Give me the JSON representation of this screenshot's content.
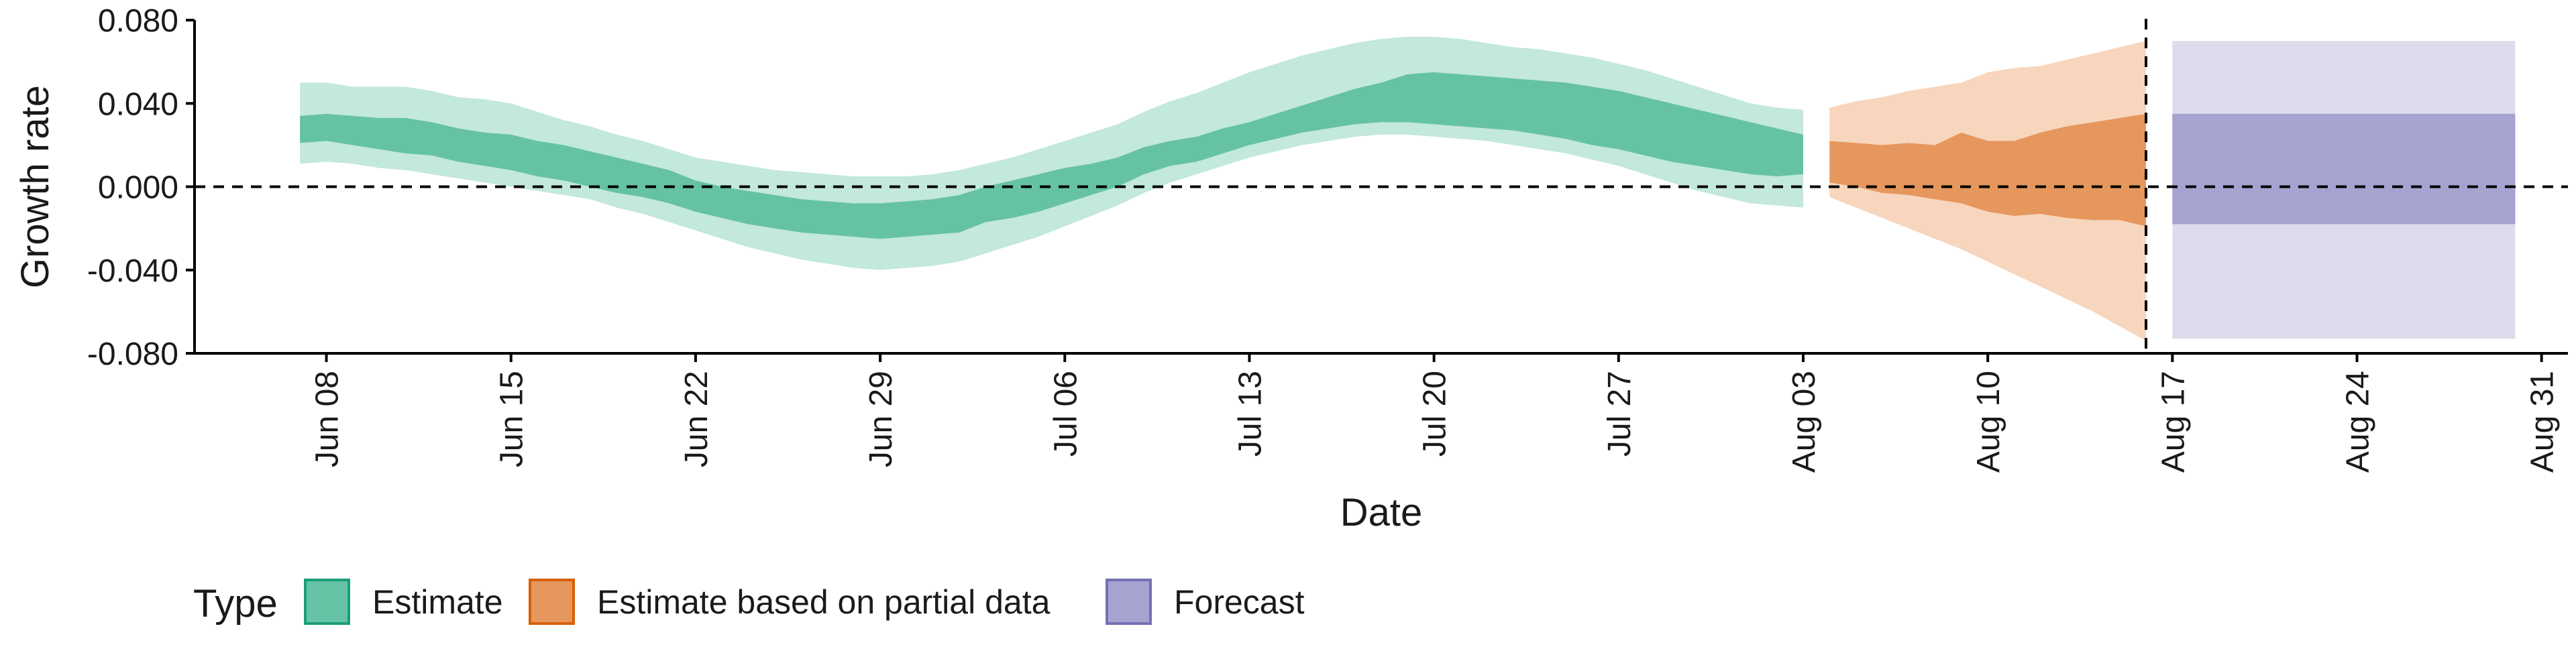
{
  "chart_data": {
    "type": "area",
    "xlabel": "Date",
    "ylabel": "Growth rate",
    "ylim": [
      -0.08,
      0.08
    ],
    "yticks": [
      "-0.080",
      "-0.040",
      "0.000",
      "0.040",
      "0.080"
    ],
    "ytick_values": [
      -0.08,
      -0.04,
      0.0,
      0.04,
      0.08
    ],
    "xlim": [
      "2020-06-03",
      "2020-09-01"
    ],
    "xticks": [
      "Jun 08",
      "Jun 15",
      "Jun 22",
      "Jun 29",
      "Jul 06",
      "Jul 13",
      "Jul 20",
      "Jul 27",
      "Aug 03",
      "Aug 10",
      "Aug 17",
      "Aug 24",
      "Aug 31"
    ],
    "xtick_dates": [
      "2020-06-08",
      "2020-06-15",
      "2020-06-22",
      "2020-06-29",
      "2020-07-06",
      "2020-07-13",
      "2020-07-20",
      "2020-07-27",
      "2020-08-03",
      "2020-08-10",
      "2020-08-17",
      "2020-08-24",
      "2020-08-31"
    ],
    "reference_lines": [
      {
        "axis": "y",
        "value": 0.0,
        "style": "dashed"
      },
      {
        "axis": "x",
        "value": "2020-08-16",
        "style": "dashed"
      }
    ],
    "grid": false,
    "legend": {
      "title": "Type",
      "position": "bottom-left",
      "entries": [
        "Estimate",
        "Estimate based on partial data",
        "Forecast"
      ]
    },
    "colors": {
      "Estimate": {
        "inner": "#66c2a5",
        "outer": "#c3e8dd",
        "border": "#1b9e77"
      },
      "Estimate based on partial data": {
        "inner": "#e6975e",
        "outer": "#f7d6bd",
        "border": "#d95f02"
      },
      "Forecast": {
        "inner": "#a7a3d1",
        "outer": "#dddbec",
        "border": "#7570b3"
      }
    },
    "series": [
      {
        "name": "Estimate",
        "x": [
          "2020-06-07",
          "2020-06-08",
          "2020-06-09",
          "2020-06-10",
          "2020-06-11",
          "2020-06-12",
          "2020-06-13",
          "2020-06-14",
          "2020-06-15",
          "2020-06-16",
          "2020-06-17",
          "2020-06-18",
          "2020-06-19",
          "2020-06-20",
          "2020-06-21",
          "2020-06-22",
          "2020-06-23",
          "2020-06-24",
          "2020-06-25",
          "2020-06-26",
          "2020-06-27",
          "2020-06-28",
          "2020-06-29",
          "2020-06-30",
          "2020-07-01",
          "2020-07-02",
          "2020-07-03",
          "2020-07-04",
          "2020-07-05",
          "2020-07-06",
          "2020-07-07",
          "2020-07-08",
          "2020-07-09",
          "2020-07-10",
          "2020-07-11",
          "2020-07-12",
          "2020-07-13",
          "2020-07-14",
          "2020-07-15",
          "2020-07-16",
          "2020-07-17",
          "2020-07-18",
          "2020-07-19",
          "2020-07-20",
          "2020-07-21",
          "2020-07-22",
          "2020-07-23",
          "2020-07-24",
          "2020-07-25",
          "2020-07-26",
          "2020-07-27",
          "2020-07-28",
          "2020-07-29",
          "2020-07-30",
          "2020-07-31",
          "2020-08-01",
          "2020-08-02",
          "2020-08-03"
        ],
        "lower_90": [
          0.011,
          0.012,
          0.011,
          0.009,
          0.008,
          0.006,
          0.004,
          0.002,
          0.0,
          -0.002,
          -0.004,
          -0.006,
          -0.01,
          -0.013,
          -0.017,
          -0.021,
          -0.025,
          -0.029,
          -0.032,
          -0.035,
          -0.037,
          -0.039,
          -0.04,
          -0.039,
          -0.038,
          -0.036,
          -0.032,
          -0.028,
          -0.024,
          -0.019,
          -0.014,
          -0.009,
          -0.003,
          0.002,
          0.006,
          0.01,
          0.014,
          0.017,
          0.02,
          0.022,
          0.024,
          0.025,
          0.025,
          0.024,
          0.023,
          0.022,
          0.02,
          0.018,
          0.016,
          0.013,
          0.01,
          0.006,
          0.002,
          -0.002,
          -0.005,
          -0.008,
          -0.009,
          -0.01
        ],
        "lower_50": [
          0.021,
          0.022,
          0.02,
          0.018,
          0.016,
          0.015,
          0.012,
          0.01,
          0.008,
          0.005,
          0.003,
          0.0,
          -0.003,
          -0.005,
          -0.008,
          -0.012,
          -0.015,
          -0.018,
          -0.02,
          -0.022,
          -0.023,
          -0.024,
          -0.025,
          -0.024,
          -0.023,
          -0.022,
          -0.017,
          -0.015,
          -0.012,
          -0.008,
          -0.004,
          0.0,
          0.006,
          0.01,
          0.012,
          0.016,
          0.02,
          0.023,
          0.026,
          0.028,
          0.03,
          0.031,
          0.031,
          0.03,
          0.029,
          0.028,
          0.027,
          0.025,
          0.023,
          0.02,
          0.018,
          0.015,
          0.012,
          0.01,
          0.008,
          0.006,
          0.005,
          0.006
        ],
        "upper_50": [
          0.034,
          0.035,
          0.034,
          0.033,
          0.033,
          0.031,
          0.028,
          0.026,
          0.025,
          0.022,
          0.02,
          0.017,
          0.014,
          0.011,
          0.008,
          0.003,
          0.0,
          -0.002,
          -0.004,
          -0.006,
          -0.007,
          -0.008,
          -0.008,
          -0.007,
          -0.006,
          -0.004,
          0.0,
          0.003,
          0.006,
          0.009,
          0.011,
          0.014,
          0.019,
          0.022,
          0.024,
          0.028,
          0.031,
          0.035,
          0.039,
          0.043,
          0.047,
          0.05,
          0.054,
          0.055,
          0.054,
          0.053,
          0.052,
          0.051,
          0.05,
          0.048,
          0.046,
          0.043,
          0.04,
          0.037,
          0.034,
          0.031,
          0.028,
          0.025
        ],
        "upper_90": [
          0.05,
          0.05,
          0.048,
          0.048,
          0.048,
          0.046,
          0.043,
          0.042,
          0.04,
          0.036,
          0.032,
          0.029,
          0.025,
          0.022,
          0.018,
          0.014,
          0.012,
          0.01,
          0.008,
          0.007,
          0.006,
          0.005,
          0.005,
          0.005,
          0.006,
          0.008,
          0.011,
          0.014,
          0.018,
          0.022,
          0.026,
          0.03,
          0.036,
          0.041,
          0.045,
          0.05,
          0.055,
          0.059,
          0.063,
          0.066,
          0.069,
          0.071,
          0.072,
          0.072,
          0.071,
          0.069,
          0.067,
          0.066,
          0.064,
          0.062,
          0.059,
          0.056,
          0.052,
          0.048,
          0.044,
          0.04,
          0.038,
          0.037
        ]
      },
      {
        "name": "Estimate based on partial data",
        "x": [
          "2020-08-04",
          "2020-08-05",
          "2020-08-06",
          "2020-08-07",
          "2020-08-08",
          "2020-08-09",
          "2020-08-10",
          "2020-08-11",
          "2020-08-12",
          "2020-08-13",
          "2020-08-14",
          "2020-08-15",
          "2020-08-16"
        ],
        "lower_90": [
          -0.005,
          -0.01,
          -0.015,
          -0.02,
          -0.025,
          -0.03,
          -0.036,
          -0.042,
          -0.048,
          -0.054,
          -0.06,
          -0.067,
          -0.074
        ],
        "lower_50": [
          0.002,
          0.0,
          -0.003,
          -0.004,
          -0.006,
          -0.008,
          -0.012,
          -0.014,
          -0.013,
          -0.015,
          -0.016,
          -0.016,
          -0.019
        ],
        "upper_50": [
          0.022,
          0.021,
          0.02,
          0.021,
          0.02,
          0.026,
          0.022,
          0.022,
          0.026,
          0.029,
          0.031,
          0.033,
          0.035
        ],
        "upper_90": [
          0.038,
          0.041,
          0.043,
          0.046,
          0.048,
          0.05,
          0.055,
          0.057,
          0.058,
          0.061,
          0.064,
          0.067,
          0.07
        ]
      },
      {
        "name": "Forecast",
        "x": [
          "2020-08-17",
          "2020-08-30"
        ],
        "lower_90": [
          -0.073,
          -0.073
        ],
        "lower_50": [
          -0.018,
          -0.018
        ],
        "upper_50": [
          0.035,
          0.035
        ],
        "upper_90": [
          0.07,
          0.07
        ]
      }
    ]
  }
}
